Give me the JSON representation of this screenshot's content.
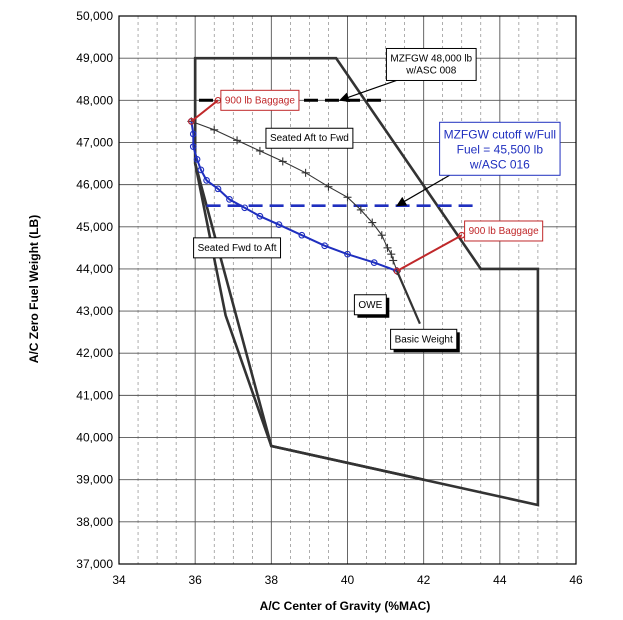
{
  "chart_data": {
    "type": "line",
    "xlabel": "A/C Center of Gravity (%MAC)",
    "ylabel": "A/C Zero Fuel Weight (LB)",
    "xlim": [
      34,
      46
    ],
    "ylim": [
      37000,
      50000
    ],
    "x_ticks": [
      "34",
      "36",
      "38",
      "40",
      "42",
      "44",
      "46"
    ],
    "y_ticks": [
      "37,000",
      "38,000",
      "39,000",
      "40,000",
      "41,000",
      "42,000",
      "43,000",
      "44,000",
      "45,000",
      "46,000",
      "47,000",
      "48,000",
      "49,000",
      "50,000"
    ],
    "grid": true,
    "envelope_outer": [
      [
        36,
        49000
      ],
      [
        39.7,
        49000
      ],
      [
        43.5,
        44000
      ],
      [
        45,
        44000
      ],
      [
        45,
        38400
      ],
      [
        38,
        39800
      ],
      [
        36.8,
        42900
      ],
      [
        36,
        46500
      ]
    ],
    "envelope_inner": [
      [
        36,
        49000
      ],
      [
        36,
        46500
      ],
      [
        38,
        39800
      ],
      [
        42,
        39000
      ]
    ],
    "mzfgw_48000_line": [
      [
        36.1,
        48000
      ],
      [
        41,
        48000
      ]
    ],
    "mzfgw_45500_line": [
      [
        36.3,
        45500
      ],
      [
        43.3,
        45500
      ]
    ],
    "series": [
      {
        "color": "#333333",
        "marker": "plus",
        "points": [
          [
            35.9,
            47500
          ],
          [
            36.5,
            47300
          ],
          [
            37.1,
            47050
          ],
          [
            37.7,
            46800
          ],
          [
            38.3,
            46550
          ],
          [
            38.9,
            46280
          ],
          [
            39.5,
            45950
          ],
          [
            40.0,
            45700
          ],
          [
            40.35,
            45400
          ],
          [
            40.65,
            45100
          ],
          [
            40.9,
            44800
          ],
          [
            41.05,
            44500
          ],
          [
            41.15,
            44350
          ],
          [
            41.2,
            44200
          ],
          [
            41.3,
            43950
          ]
        ]
      },
      {
        "color": "#1f2fbf",
        "marker": "circle",
        "points": [
          [
            35.9,
            47500
          ],
          [
            35.95,
            47200
          ],
          [
            35.95,
            46900
          ],
          [
            36.05,
            46600
          ],
          [
            36.15,
            46350
          ],
          [
            36.3,
            46100
          ],
          [
            36.6,
            45900
          ],
          [
            36.9,
            45650
          ],
          [
            37.3,
            45450
          ],
          [
            37.7,
            45250
          ],
          [
            38.2,
            45050
          ],
          [
            38.8,
            44800
          ],
          [
            39.4,
            44550
          ],
          [
            40.0,
            44350
          ],
          [
            40.7,
            44150
          ],
          [
            41.3,
            43950
          ]
        ]
      },
      {
        "color": "#c0282a",
        "marker": "circle",
        "points": [
          [
            41.3,
            43950
          ],
          [
            43.0,
            44800
          ]
        ]
      },
      {
        "color": "#c0282a",
        "marker": "circle",
        "points": [
          [
            35.9,
            47500
          ],
          [
            36.6,
            48000
          ]
        ]
      },
      {
        "color": "#333333",
        "marker": "none",
        "points": [
          [
            41.3,
            43950
          ],
          [
            41.9,
            42700
          ]
        ]
      }
    ],
    "annotations": [
      {
        "text": "900 lb Baggage",
        "style": "red-box",
        "x": 37.7,
        "y": 48000
      },
      {
        "text": "900 lb Baggage",
        "style": "red-box",
        "x": 44.1,
        "y": 44900
      },
      {
        "text": "Seated Aft to Fwd",
        "style": "box",
        "x": 39.0,
        "y": 47100
      },
      {
        "text": "Seated Fwd to Aft",
        "style": "box",
        "x": 37.1,
        "y": 44500
      },
      {
        "text": "OWE",
        "style": "box",
        "x": 40.6,
        "y": 43150
      },
      {
        "text": "Basic Weight",
        "style": "box",
        "x": 42.0,
        "y": 42330
      }
    ],
    "callouts": [
      {
        "lines": [
          "MZFGW 48,000 lb",
          "w/ASC 008"
        ],
        "style": "box",
        "x": 42.2,
        "y": 48850,
        "arrow_to": [
          39.8,
          48000
        ]
      },
      {
        "lines": [
          "MZFGW cutoff w/Full",
          "Fuel = 45,500 lb",
          "w/ASC 016"
        ],
        "style": "blue-box",
        "x": 44.0,
        "y": 46850,
        "arrow_to": [
          41.3,
          45500
        ]
      }
    ]
  }
}
